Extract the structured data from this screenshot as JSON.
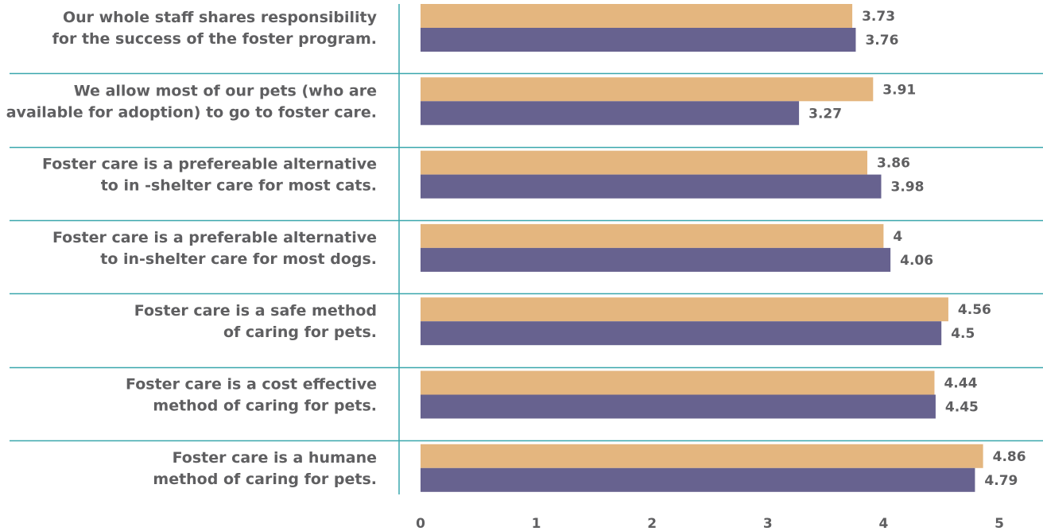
{
  "chart_data": {
    "type": "bar",
    "orientation": "horizontal",
    "title": "",
    "xlabel": "",
    "ylabel": "",
    "xlim": [
      0,
      5
    ],
    "x_ticks": [
      "0",
      "1",
      "2",
      "3",
      "4",
      "5"
    ],
    "grid": false,
    "categories": [
      [
        "Our whole staff shares responsibility",
        "for the success of the foster program."
      ],
      [
        "We allow most of our pets (who are",
        "available for adoption) to go to foster care."
      ],
      [
        "Foster care is a prefereable alternative",
        "to in -shelter care for most cats."
      ],
      [
        "Foster care is a preferable alternative",
        "to in-shelter care for most dogs."
      ],
      [
        "Foster care is a safe method",
        "of caring for pets."
      ],
      [
        "Foster care is a cost effective",
        "method of caring for pets."
      ],
      [
        "Foster care is a humane",
        "method of caring for pets."
      ]
    ],
    "series": [
      {
        "color": "#e4b67f",
        "values": [
          3.73,
          3.91,
          3.86,
          4,
          4.56,
          4.44,
          4.86
        ],
        "labels": [
          "3.73",
          "3.91",
          "3.86",
          "4",
          "4.56",
          "4.44",
          "4.86"
        ]
      },
      {
        "color": "#67628f",
        "values": [
          3.76,
          3.27,
          3.98,
          4.06,
          4.5,
          4.45,
          4.79
        ],
        "labels": [
          "3.76",
          "3.27",
          "3.98",
          "4.06",
          "4.5",
          "4.45",
          "4.79"
        ]
      }
    ],
    "colors": {
      "separator": "#3aa7ad",
      "text": "#5f5f61"
    }
  }
}
